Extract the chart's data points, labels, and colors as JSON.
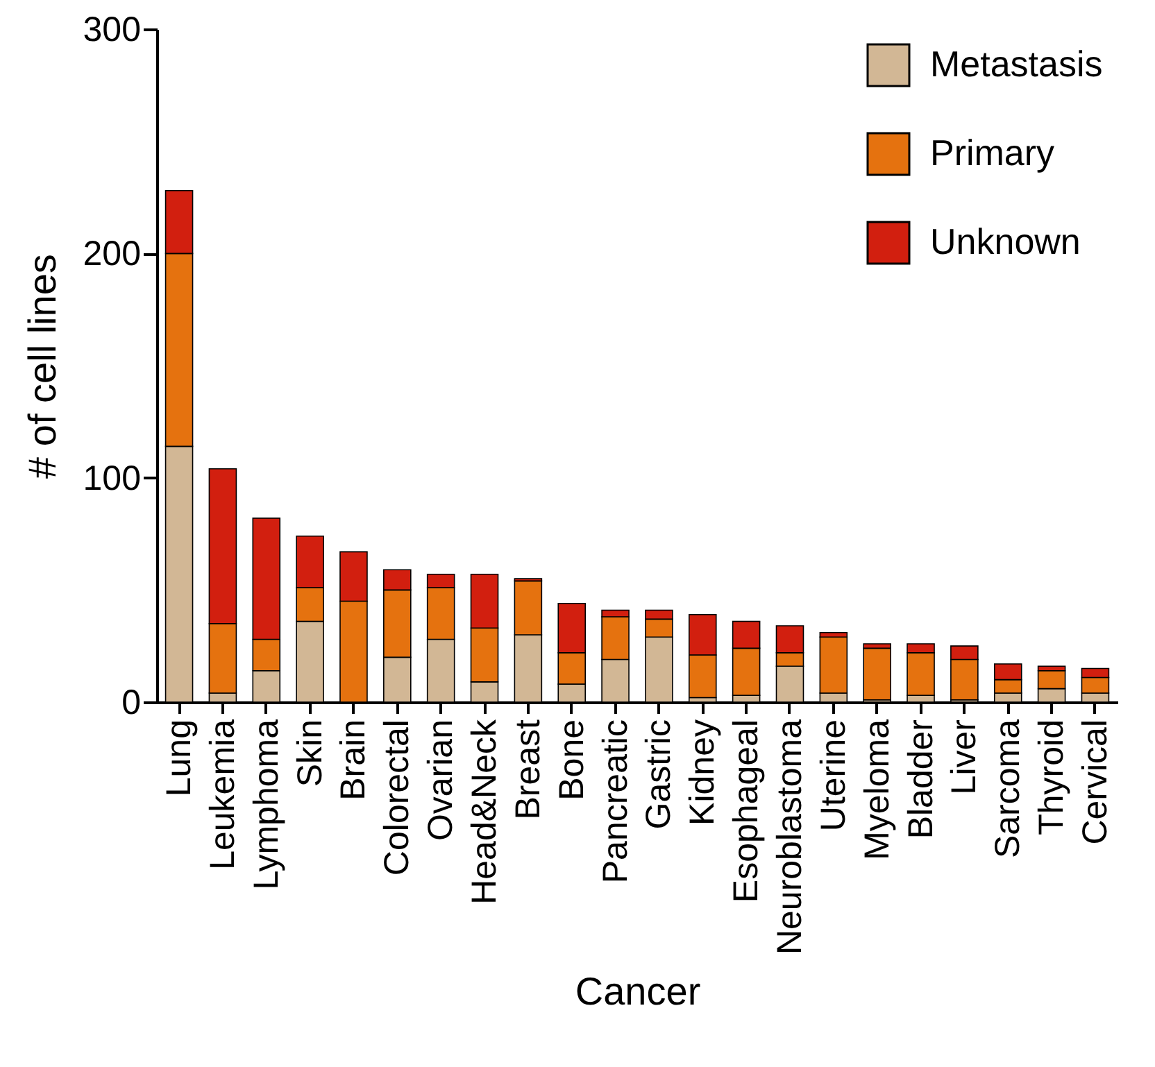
{
  "chart_data": {
    "type": "bar",
    "stacked": true,
    "xlabel": "Cancer",
    "ylabel": "# of cell lines",
    "categories": [
      "Lung",
      "Leukemia",
      "Lymphoma",
      "Skin",
      "Brain",
      "Colorectal",
      "Ovarian",
      "Head&Neck",
      "Breast",
      "Bone",
      "Pancreatic",
      "Gastric",
      "Kidney",
      "Esophageal",
      "Neuroblastoma",
      "Uterine",
      "Myeloma",
      "Bladder",
      "Liver",
      "Sarcoma",
      "Thyroid",
      "Cervical"
    ],
    "series": [
      {
        "name": "Metastasis",
        "color": "#d2b795",
        "values": [
          114,
          4,
          14,
          36,
          0,
          20,
          28,
          9,
          30,
          8,
          19,
          29,
          2,
          3,
          16,
          4,
          1,
          3,
          1,
          4,
          6,
          4
        ]
      },
      {
        "name": "Primary",
        "color": "#e5720f",
        "values": [
          86,
          31,
          14,
          15,
          45,
          30,
          23,
          24,
          24,
          14,
          19,
          8,
          19,
          21,
          6,
          25,
          23,
          19,
          18,
          6,
          8,
          7
        ]
      },
      {
        "name": "Unknown",
        "color": "#d21f0f",
        "values": [
          28,
          69,
          54,
          23,
          22,
          9,
          6,
          24,
          1,
          22,
          3,
          4,
          18,
          12,
          12,
          2,
          2,
          4,
          6,
          7,
          2,
          4
        ]
      }
    ],
    "ylim": [
      0,
      300
    ],
    "yticks": [
      0,
      100,
      200,
      300
    ],
    "grid": false,
    "legend": "top right"
  }
}
